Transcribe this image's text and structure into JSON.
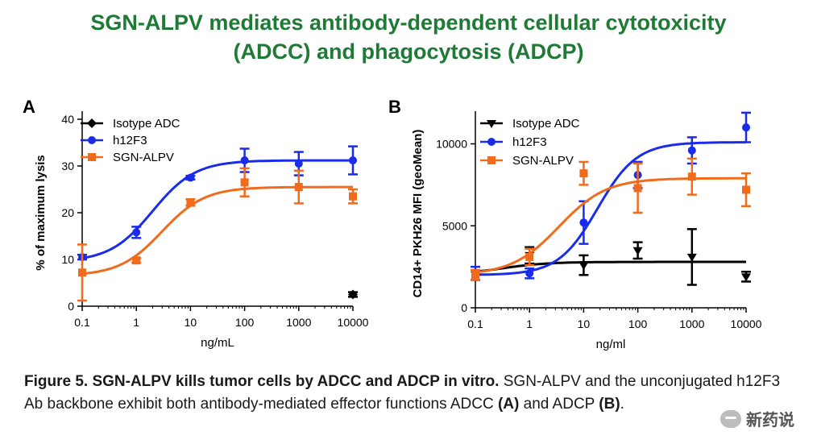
{
  "title": {
    "line1": "SGN-ALPV mediates antibody-dependent cellular cytotoxicity",
    "line2": "(ADCC) and phagocytosis (ADCP)"
  },
  "caption": {
    "bold": "Figure 5. SGN-ALPV kills tumor cells by ADCC and ADCP in vitro.",
    "text1": " SGN-ALPV and the unconjugated h12F3 Ab backbone exhibit both antibody-mediated effector functions ADCC ",
    "a": "(A)",
    "text2": " and ADCP ",
    "b": "(B)",
    "text3": "."
  },
  "watermark": {
    "text": "新药说",
    "icon": "wechat-icon"
  },
  "colors": {
    "isotype": "#000000",
    "h12F3": "#1a2bea",
    "sgn": "#f06b1c",
    "title": "#1e7a35"
  },
  "chart_data": [
    {
      "panel": "A",
      "type": "scatter",
      "xscale": "log",
      "xlabel": "ng/mL",
      "ylabel": "% of maximum lysis",
      "ylim": [
        0,
        40
      ],
      "xlim": [
        0.1,
        10000
      ],
      "xticks": [
        "0.1",
        "1",
        "10",
        "100",
        "1000",
        "10000"
      ],
      "yticks": [
        0,
        10,
        20,
        30,
        40
      ],
      "legend_position": "top-left",
      "series": [
        {
          "name": "Isotype  ADC",
          "color": "#000000",
          "marker": "diamond",
          "x": [
            10000
          ],
          "y": [
            2.5
          ],
          "err": [
            0.5
          ],
          "fit": null
        },
        {
          "name": "h12F3",
          "color": "#1a2bea",
          "marker": "circle",
          "x": [
            0.1,
            1,
            10,
            100,
            1000,
            10000
          ],
          "y": [
            10.5,
            15.8,
            27.5,
            31.2,
            30.5,
            31.2
          ],
          "err": [
            0.5,
            1.2,
            0.4,
            2.5,
            2.5,
            3.0
          ],
          "fit": {
            "bottom": 9.5,
            "top": 31.2,
            "ec50": 2.0,
            "hill": 1.1
          }
        },
        {
          "name": "SGN-ALPV",
          "color": "#f06b1c",
          "marker": "square",
          "x": [
            0.1,
            1,
            10,
            100,
            1000,
            10000
          ],
          "y": [
            7.2,
            9.8,
            22.2,
            26.5,
            25.5,
            23.5
          ],
          "err": [
            6.0,
            0.5,
            0.7,
            3.0,
            3.5,
            1.5
          ],
          "fit": {
            "bottom": 6.5,
            "top": 25.5,
            "ec50": 3.0,
            "hill": 1.1
          }
        }
      ]
    },
    {
      "panel": "B",
      "type": "scatter",
      "xscale": "log",
      "xlabel": "ng/ml",
      "ylabel": "CD14+ PKH26 MFI (geoMean)",
      "ylim": [
        0,
        11500
      ],
      "xlim": [
        0.1,
        10000
      ],
      "xticks": [
        "0.1",
        "1",
        "10",
        "100",
        "1000",
        "10000"
      ],
      "yticks": [
        0,
        5000,
        10000
      ],
      "legend_position": "top-left",
      "series": [
        {
          "name": "Isotype  ADC",
          "color": "#000000",
          "marker": "triangle-down",
          "x": [
            0.1,
            1,
            10,
            100,
            1000,
            10000
          ],
          "y": [
            2000,
            3200,
            2600,
            3500,
            3100,
            1900
          ],
          "err": [
            300,
            500,
            600,
            500,
            1700,
            300
          ],
          "fit": {
            "bottom": 2000,
            "top": 2800,
            "ec50": 0.3,
            "hill": 1.0
          }
        },
        {
          "name": "h12F3",
          "color": "#1a2bea",
          "marker": "circle",
          "x": [
            0.1,
            1,
            10,
            100,
            1000,
            10000
          ],
          "y": [
            2100,
            2100,
            5200,
            8100,
            9600,
            11000
          ],
          "err": [
            400,
            300,
            1300,
            800,
            800,
            900
          ],
          "fit": {
            "bottom": 2000,
            "top": 10100,
            "ec50": 18,
            "hill": 1.2
          }
        },
        {
          "name": "SGN-ALPV",
          "color": "#f06b1c",
          "marker": "square",
          "x": [
            0.1,
            1,
            10,
            100,
            1000,
            10000
          ],
          "y": [
            2000,
            3100,
            8200,
            7300,
            8000,
            7200
          ],
          "err": [
            300,
            500,
            700,
            1500,
            1100,
            1000
          ],
          "fit": {
            "bottom": 2000,
            "top": 7900,
            "ec50": 3.5,
            "hill": 1.0
          }
        }
      ]
    }
  ]
}
